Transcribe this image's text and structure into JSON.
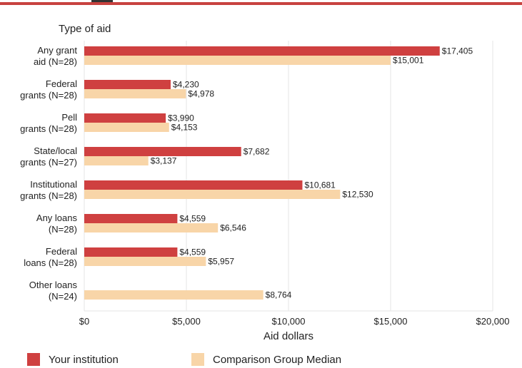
{
  "chart_data": {
    "type": "bar",
    "orientation": "horizontal",
    "title": "",
    "category_axis_title": "Type of aid",
    "xlabel": "Aid dollars",
    "xlim": [
      0,
      20000
    ],
    "xticks": [
      0,
      5000,
      10000,
      15000,
      20000
    ],
    "xtick_labels": [
      "$0",
      "$5,000",
      "$10,000",
      "$15,000",
      "$20,000"
    ],
    "grid": true,
    "legend_position": "bottom",
    "categories": [
      [
        "Any grant",
        "aid (N=28)"
      ],
      [
        "Federal",
        "grants (N=28)"
      ],
      [
        "Pell",
        "grants (N=28)"
      ],
      [
        "State/local",
        "grants (N=27)"
      ],
      [
        "Institutional",
        "grants (N=28)"
      ],
      [
        "Any loans",
        "(N=28)"
      ],
      [
        "Federal",
        "loans (N=28)"
      ],
      [
        "Other loans",
        "(N=24)"
      ]
    ],
    "series": [
      {
        "name": "Your institution",
        "color": "#cf4040",
        "values": [
          17405,
          4230,
          3990,
          7682,
          10681,
          4559,
          4559,
          null
        ],
        "labels": [
          "$17,405",
          "$4,230",
          "$3,990",
          "$7,682",
          "$10,681",
          "$4,559",
          "$4,559",
          ""
        ]
      },
      {
        "name": "Comparison Group Median",
        "color": "#f8d5a8",
        "values": [
          15001,
          4978,
          4153,
          3137,
          12530,
          6546,
          5957,
          8764
        ],
        "labels": [
          "$15,001",
          "$4,978",
          "$4,153",
          "$3,137",
          "$12,530",
          "$6,546",
          "$5,957",
          "$8,764"
        ]
      }
    ]
  }
}
